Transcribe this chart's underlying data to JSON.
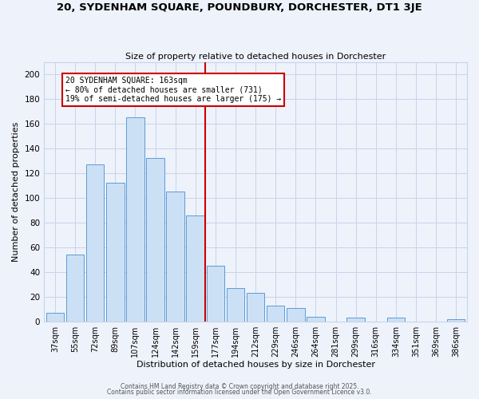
{
  "title": "20, SYDENHAM SQUARE, POUNDBURY, DORCHESTER, DT1 3JE",
  "subtitle": "Size of property relative to detached houses in Dorchester",
  "xlabel": "Distribution of detached houses by size in Dorchester",
  "ylabel": "Number of detached properties",
  "bar_labels": [
    "37sqm",
    "55sqm",
    "72sqm",
    "89sqm",
    "107sqm",
    "124sqm",
    "142sqm",
    "159sqm",
    "177sqm",
    "194sqm",
    "212sqm",
    "229sqm",
    "246sqm",
    "264sqm",
    "281sqm",
    "299sqm",
    "316sqm",
    "334sqm",
    "351sqm",
    "369sqm",
    "386sqm"
  ],
  "bar_values": [
    7,
    54,
    127,
    112,
    165,
    132,
    105,
    86,
    45,
    27,
    23,
    13,
    11,
    4,
    0,
    3,
    0,
    3,
    0,
    0,
    2
  ],
  "bar_color": "#cce0f5",
  "bar_edge_color": "#5b9bd5",
  "vline_x": 7.5,
  "vline_color": "#cc0000",
  "annotation_title": "20 SYDENHAM SQUARE: 163sqm",
  "annotation_line1": "← 80% of detached houses are smaller (731)",
  "annotation_line2": "19% of semi-detached houses are larger (175) →",
  "annotation_box_color": "#cc0000",
  "annotation_fill": "white",
  "ylim": [
    0,
    210
  ],
  "yticks": [
    0,
    20,
    40,
    60,
    80,
    100,
    120,
    140,
    160,
    180,
    200
  ],
  "footer1": "Contains HM Land Registry data © Crown copyright and database right 2025.",
  "footer2": "Contains public sector information licensed under the Open Government Licence v3.0.",
  "bg_color": "#eef2fb",
  "grid_color": "#c8d4e8"
}
